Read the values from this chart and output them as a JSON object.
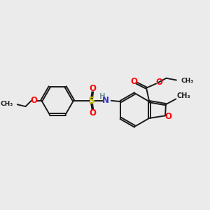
{
  "bg_color": "#ebebeb",
  "bond_color": "#1a1a1a",
  "O_color": "#ff0000",
  "N_color": "#3333cc",
  "S_color": "#cccc00",
  "H_color": "#888888",
  "lw": 1.4,
  "dbo": 0.07,
  "xlim": [
    0,
    10
  ],
  "ylim": [
    0,
    10
  ]
}
